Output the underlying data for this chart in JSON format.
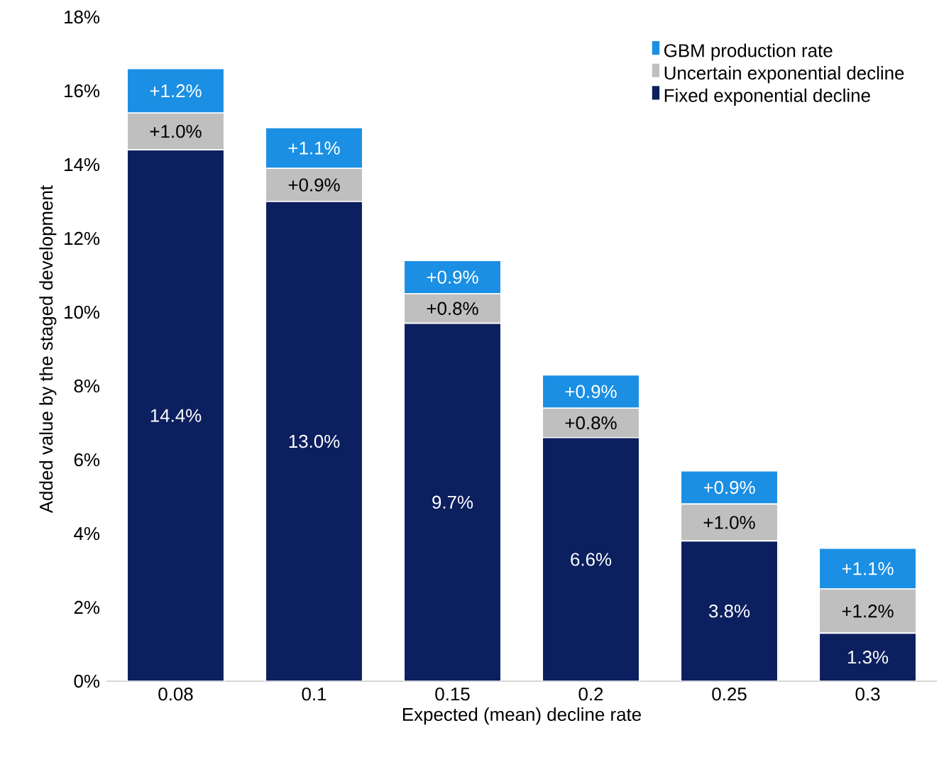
{
  "chart_data": {
    "type": "bar",
    "stacked": true,
    "xlabel": "Expected (mean) decline rate",
    "ylabel": "Added value by the staged development",
    "categories": [
      "0.08",
      "0.1",
      "0.15",
      "0.2",
      "0.25",
      "0.3"
    ],
    "series": [
      {
        "name": "Fixed exponential decline",
        "color": "#0c1f5e",
        "values": [
          14.4,
          13.0,
          9.7,
          6.6,
          3.8,
          1.3
        ],
        "value_labels": [
          "14.4%",
          "13.0%",
          "9.7%",
          "6.6%",
          "3.8%",
          "1.3%"
        ]
      },
      {
        "name": "Uncertain exponential decline",
        "color": "#bfbfbf",
        "values": [
          1.0,
          0.9,
          0.8,
          0.8,
          1.0,
          1.2
        ],
        "value_labels": [
          "+1.0%",
          "+0.9%",
          "+0.8%",
          "+0.8%",
          "+1.0%",
          "+1.2%"
        ]
      },
      {
        "name": "GBM production rate",
        "color": "#1a8fe3",
        "values": [
          1.2,
          1.1,
          0.9,
          0.9,
          0.9,
          1.1
        ],
        "value_labels": [
          "+1.2%",
          "+1.1%",
          "+0.9%",
          "+0.9%",
          "+0.9%",
          "+1.1%"
        ]
      }
    ],
    "ylim": [
      0,
      18
    ],
    "yticks": [
      {
        "value": 0,
        "label": "0%"
      },
      {
        "value": 2,
        "label": "2%"
      },
      {
        "value": 4,
        "label": "4%"
      },
      {
        "value": 6,
        "label": "6%"
      },
      {
        "value": 8,
        "label": "8%"
      },
      {
        "value": 10,
        "label": "10%"
      },
      {
        "value": 12,
        "label": "12%"
      },
      {
        "value": 14,
        "label": "14%"
      },
      {
        "value": 16,
        "label": "16%"
      },
      {
        "value": 18,
        "label": "18%"
      }
    ],
    "grid": false,
    "legend": "top right"
  }
}
